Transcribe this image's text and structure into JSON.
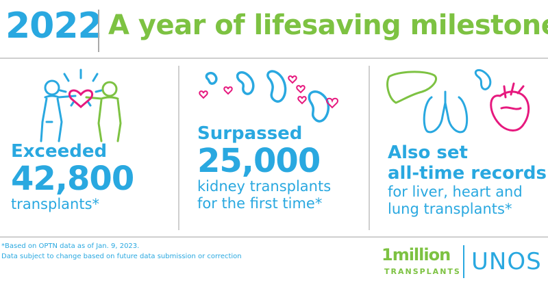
{
  "header": {
    "year": "2022",
    "headline": "A year of lifesaving milestones"
  },
  "stats": [
    {
      "lead": "Exceeded",
      "number": "42,800",
      "sub": [
        "transplants*"
      ]
    },
    {
      "lead": "Surpassed",
      "number": "25,000",
      "sub": [
        "kidney transplants",
        "for the first time*"
      ]
    },
    {
      "lead": "",
      "number": "",
      "headline_lines": [
        "Also set",
        "all-time records"
      ],
      "sub": [
        "for liver, heart and",
        "lung transplants*"
      ]
    }
  ],
  "footnote": {
    "line1": "*Based on OPTN data as of Jan. 9, 2023.",
    "line2": "Data subject to change based on future data submission or correction"
  },
  "brand": {
    "million_line1": "1million",
    "million_line2": "TRANSPLANTS",
    "unos": "UNOS"
  },
  "colors": {
    "blue": "#29a8e0",
    "green": "#7dc242",
    "pink": "#e6197e"
  },
  "icons": [
    "people-heart-icon",
    "kidneys-hearts-icon",
    "organs-icon"
  ]
}
